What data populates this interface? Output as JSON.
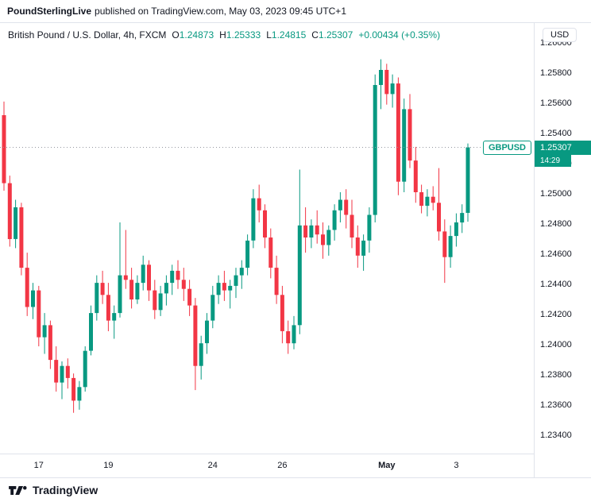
{
  "header": {
    "publisher": "PoundSterlingLive",
    "attribution": "published on TradingView.com, May 03, 2023 09:45 UTC+1"
  },
  "legend": {
    "symbol_title": "British Pound / U.S. Dollar, 4h, FXCM",
    "o_label": "O",
    "o_value": "1.24873",
    "h_label": "H",
    "h_value": "1.25333",
    "l_label": "L",
    "l_value": "1.24815",
    "c_label": "C",
    "c_value": "1.25307",
    "change": "+0.00434 (+0.35%)"
  },
  "price_axis": {
    "currency": "USD",
    "ticks": [
      "1.26000",
      "1.25800",
      "1.25600",
      "1.25400",
      "1.25200",
      "1.25000",
      "1.24800",
      "1.24600",
      "1.24400",
      "1.24200",
      "1.24000",
      "1.23800",
      "1.23600",
      "1.23400"
    ]
  },
  "price_flag": {
    "symbol": "GBPUSD",
    "price": "1.25307",
    "countdown": "14:29"
  },
  "footer": {
    "brand": "TradingView"
  },
  "colors": {
    "up": "#089981",
    "down": "#f23645",
    "text": "#131722",
    "border": "#e0e3eb"
  },
  "chart_data": {
    "type": "candlestick",
    "title": "British Pound / U.S. Dollar, 4h, FXCM",
    "pair": "GBP/USD",
    "timeframe": "4h",
    "source": "FXCM",
    "ohlc_current": {
      "open": 1.24873,
      "high": 1.25333,
      "low": 1.24815,
      "close": 1.25307,
      "change": "+0.00434 (+0.35%)"
    },
    "y_range": [
      1.2328,
      1.2613
    ],
    "price_line": 1.25307,
    "up_color": "#089981",
    "down_color": "#f23645",
    "grid": false,
    "x_labels": [
      {
        "index": 6,
        "label": "17",
        "bold": false
      },
      {
        "index": 18,
        "label": "19",
        "bold": false
      },
      {
        "index": 36,
        "label": "24",
        "bold": false
      },
      {
        "index": 48,
        "label": "26",
        "bold": false
      },
      {
        "index": 66,
        "label": "May",
        "bold": true
      },
      {
        "index": 78,
        "label": "3",
        "bold": false
      }
    ],
    "candles": [
      [
        1.2552,
        1.2561,
        1.2502,
        1.2507
      ],
      [
        1.2507,
        1.2512,
        1.2465,
        1.247
      ],
      [
        1.247,
        1.2496,
        1.2464,
        1.2491
      ],
      [
        1.2491,
        1.2494,
        1.2446,
        1.2451
      ],
      [
        1.2451,
        1.2461,
        1.2419,
        1.2425
      ],
      [
        1.2425,
        1.2441,
        1.2417,
        1.2436
      ],
      [
        1.2436,
        1.2439,
        1.2399,
        1.2405
      ],
      [
        1.2405,
        1.2421,
        1.2394,
        1.2413
      ],
      [
        1.2413,
        1.2416,
        1.2384,
        1.239
      ],
      [
        1.239,
        1.2399,
        1.2369,
        1.2375
      ],
      [
        1.2375,
        1.2389,
        1.2364,
        1.2386
      ],
      [
        1.2386,
        1.2391,
        1.2371,
        1.2378
      ],
      [
        1.2378,
        1.2381,
        1.2355,
        1.2363
      ],
      [
        1.2363,
        1.2376,
        1.2357,
        1.2372
      ],
      [
        1.2372,
        1.2399,
        1.2369,
        1.2396
      ],
      [
        1.2396,
        1.2426,
        1.2393,
        1.2421
      ],
      [
        1.2421,
        1.2446,
        1.2416,
        1.2441
      ],
      [
        1.2441,
        1.2449,
        1.2427,
        1.2433
      ],
      [
        1.2433,
        1.2441,
        1.2409,
        1.2416
      ],
      [
        1.2416,
        1.2426,
        1.2404,
        1.2421
      ],
      [
        1.2421,
        1.2481,
        1.2418,
        1.2446
      ],
      [
        1.2446,
        1.2476,
        1.2437,
        1.2443
      ],
      [
        1.2443,
        1.2451,
        1.2424,
        1.243
      ],
      [
        1.243,
        1.2446,
        1.2427,
        1.2441
      ],
      [
        1.2441,
        1.2459,
        1.2436,
        1.2453
      ],
      [
        1.2453,
        1.2456,
        1.2429,
        1.2436
      ],
      [
        1.2436,
        1.2443,
        1.2417,
        1.2423
      ],
      [
        1.2423,
        1.2439,
        1.2419,
        1.2434
      ],
      [
        1.2434,
        1.2446,
        1.2426,
        1.2441
      ],
      [
        1.2441,
        1.2453,
        1.2433,
        1.2449
      ],
      [
        1.2449,
        1.2456,
        1.2437,
        1.2443
      ],
      [
        1.2443,
        1.2451,
        1.2429,
        1.2437
      ],
      [
        1.2437,
        1.2443,
        1.2419,
        1.2426
      ],
      [
        1.2426,
        1.2431,
        1.237,
        1.2386
      ],
      [
        1.2386,
        1.2406,
        1.2377,
        1.2401
      ],
      [
        1.2401,
        1.2421,
        1.2394,
        1.2416
      ],
      [
        1.2416,
        1.2439,
        1.2411,
        1.2433
      ],
      [
        1.2433,
        1.2446,
        1.2427,
        1.2441
      ],
      [
        1.2441,
        1.2449,
        1.2429,
        1.2436
      ],
      [
        1.2436,
        1.2443,
        1.2424,
        1.2439
      ],
      [
        1.2439,
        1.2451,
        1.2431,
        1.2446
      ],
      [
        1.2446,
        1.2456,
        1.2437,
        1.2451
      ],
      [
        1.2451,
        1.2473,
        1.2446,
        1.2469
      ],
      [
        1.2469,
        1.2503,
        1.2464,
        1.2497
      ],
      [
        1.2497,
        1.2506,
        1.2481,
        1.2489
      ],
      [
        1.2489,
        1.2493,
        1.2464,
        1.2471
      ],
      [
        1.2471,
        1.2477,
        1.2444,
        1.2451
      ],
      [
        1.2451,
        1.2459,
        1.2427,
        1.2433
      ],
      [
        1.2433,
        1.2439,
        1.2401,
        1.2409
      ],
      [
        1.2409,
        1.2416,
        1.2394,
        1.2401
      ],
      [
        1.2401,
        1.2419,
        1.2397,
        1.2413
      ],
      [
        1.2413,
        1.2516,
        1.2407,
        1.2479
      ],
      [
        1.2479,
        1.2491,
        1.2461,
        1.2471
      ],
      [
        1.2471,
        1.2483,
        1.2464,
        1.2479
      ],
      [
        1.2479,
        1.2489,
        1.2467,
        1.2473
      ],
      [
        1.2473,
        1.2481,
        1.2457,
        1.2466
      ],
      [
        1.2466,
        1.2479,
        1.2459,
        1.2476
      ],
      [
        1.2476,
        1.2493,
        1.2469,
        1.2489
      ],
      [
        1.2489,
        1.2501,
        1.2481,
        1.2496
      ],
      [
        1.2496,
        1.2503,
        1.2477,
        1.2486
      ],
      [
        1.2486,
        1.2496,
        1.2464,
        1.2471
      ],
      [
        1.2471,
        1.2479,
        1.2451,
        1.2459
      ],
      [
        1.2459,
        1.2473,
        1.2449,
        1.2469
      ],
      [
        1.2469,
        1.2491,
        1.2461,
        1.2486
      ],
      [
        1.2486,
        1.2579,
        1.2481,
        1.2572
      ],
      [
        1.2572,
        1.2589,
        1.2556,
        1.2582
      ],
      [
        1.2582,
        1.2586,
        1.2559,
        1.2566
      ],
      [
        1.2566,
        1.2579,
        1.2557,
        1.2573
      ],
      [
        1.2573,
        1.2577,
        1.2499,
        1.2508
      ],
      [
        1.2508,
        1.2563,
        1.2501,
        1.2556
      ],
      [
        1.2556,
        1.2566,
        1.2517,
        1.2522
      ],
      [
        1.2522,
        1.2531,
        1.2494,
        1.2501
      ],
      [
        1.2501,
        1.2506,
        1.2487,
        1.2492
      ],
      [
        1.2492,
        1.2503,
        1.2485,
        1.2498
      ],
      [
        1.2498,
        1.2505,
        1.2489,
        1.2494
      ],
      [
        1.2494,
        1.2517,
        1.2469,
        1.2475
      ],
      [
        1.2475,
        1.2483,
        1.2441,
        1.2458
      ],
      [
        1.2458,
        1.2479,
        1.2451,
        1.2472
      ],
      [
        1.2472,
        1.2487,
        1.2465,
        1.2481
      ],
      [
        1.2481,
        1.2493,
        1.2474,
        1.24873
      ],
      [
        1.24873,
        1.25333,
        1.24815,
        1.25307
      ]
    ]
  }
}
